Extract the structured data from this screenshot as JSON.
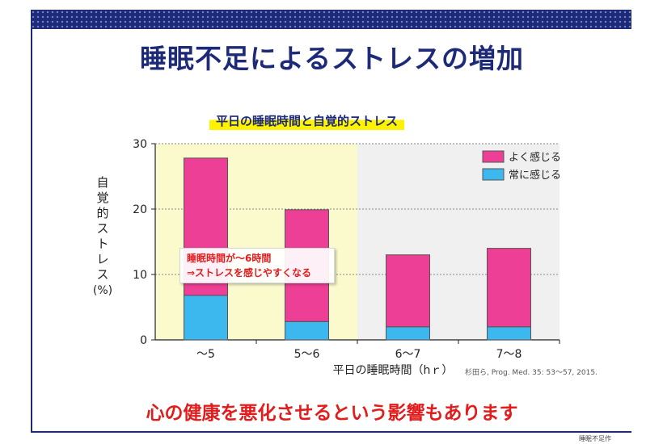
{
  "slide": {
    "title": "睡眠不足によるストレスの増加",
    "bottom_message": "心の健康を悪化させるという影響もあります",
    "reference": "杉田ら, Prog. Med. 35: 53〜57, 2015.",
    "footer_fragment": "睡眠不足作"
  },
  "callout": {
    "line1": "睡眠時間が〜6時間",
    "line2": "⇒ストレスを感じやすくなる"
  },
  "colors": {
    "band": "#1c2a78",
    "often": "#ec3f95",
    "always": "#3db8ef",
    "highlight_bg": "#fbfacd",
    "gray_bg": "#f0f0f0",
    "message": "#e21c1c"
  },
  "chart_data": {
    "type": "bar",
    "stacked": true,
    "title": "平日の睡眠時間と自覚的ストレス",
    "xlabel": "平日の睡眠時間（hｒ）",
    "ylabel": "自覚的ストレス",
    "ylabel_unit": "(%)",
    "ylim": [
      0,
      30
    ],
    "yticks": [
      "0",
      "10",
      "20",
      "30"
    ],
    "grid": true,
    "legend_position": "top-right",
    "categories": [
      "〜5",
      "5〜6",
      "6〜7",
      "7〜8"
    ],
    "series": [
      {
        "name": "常に感じる",
        "values": [
          6.8,
          2.8,
          2.0,
          2.0
        ]
      },
      {
        "name": "よく感じる",
        "values": [
          21.0,
          17.1,
          11.0,
          12.0
        ]
      }
    ]
  }
}
